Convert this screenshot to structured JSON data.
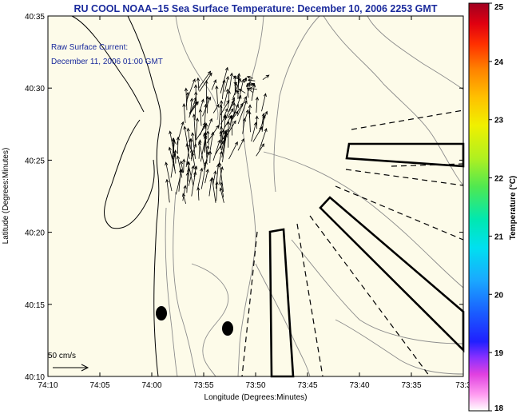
{
  "title": "RU COOL  NOAA−15  Sea Surface Temperature:  December 10, 2006 2253 GMT",
  "current_label_line1": "Raw Surface Current:",
  "current_label_line2": "December 11, 2006 01:00 GMT",
  "scale_label": "50 cm/s",
  "xlabel": "Longitude (Degrees:Minutes)",
  "ylabel": "Latitude (Degrees:Minutes)",
  "x_ticks": [
    "74:10",
    "74:05",
    "74:00",
    "73:55",
    "73:50",
    "73:45",
    "73:40",
    "73:35",
    "73:3"
  ],
  "y_ticks": [
    "40:35",
    "40:30",
    "40:25",
    "40:20",
    "40:15",
    "40:10"
  ],
  "colorbar": {
    "label": "Temperature (°C)",
    "min": 18,
    "max": 25,
    "ticks": [
      "25",
      "24",
      "23",
      "22",
      "21",
      "20",
      "19",
      "18"
    ]
  },
  "colors": {
    "title": "#1a2a9c",
    "land": "#fdfbe9",
    "coast": "#000000",
    "bathymetry": "#8c8c8c"
  }
}
